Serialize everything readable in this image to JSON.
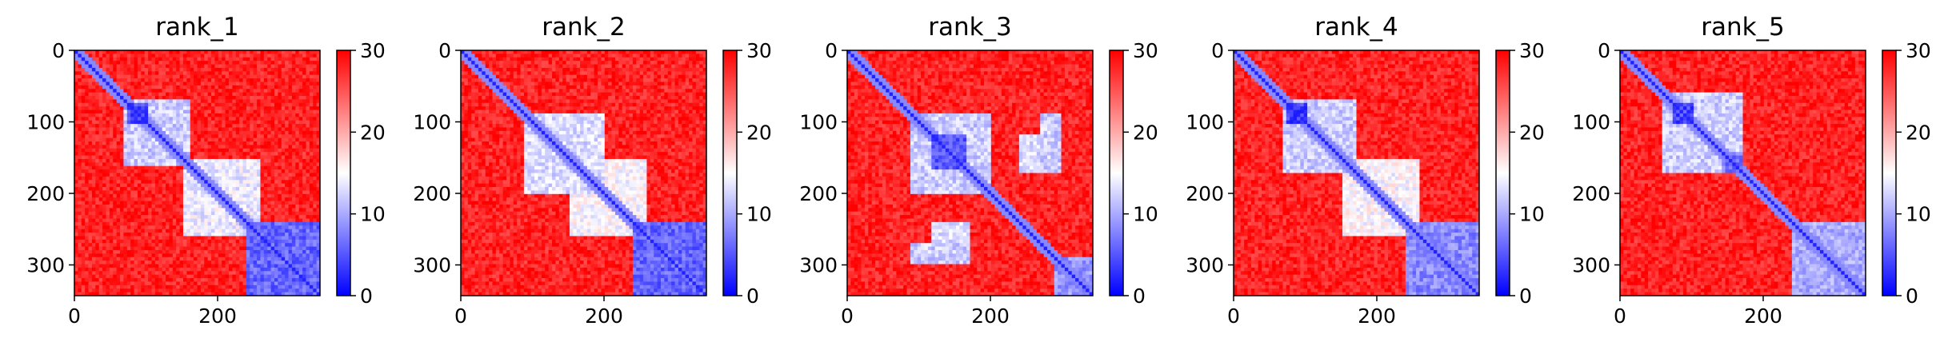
{
  "chart_data": [
    {
      "type": "heatmap",
      "title": "rank_1",
      "n": 343,
      "xticks": [
        0,
        200
      ],
      "yticks": [
        0,
        100,
        200,
        300
      ],
      "colorbar": {
        "range": [
          0,
          30
        ],
        "ticks": [
          0,
          10,
          20,
          30
        ]
      },
      "colormap": {
        "low": "#0000ff",
        "mid": "#ffffff",
        "high": "#ff0000"
      },
      "background_value": 28,
      "diagonal_value": 2,
      "blocks": [
        {
          "i": [
            70,
            160
          ],
          "j": [
            70,
            160
          ],
          "value": 12
        },
        {
          "i": [
            75,
            105
          ],
          "j": [
            75,
            105
          ],
          "value": 4
        },
        {
          "i": [
            240,
            343
          ],
          "j": [
            240,
            343
          ],
          "value": 6
        },
        {
          "i": [
            150,
            260
          ],
          "j": [
            150,
            260
          ],
          "value": 14
        }
      ]
    },
    {
      "type": "heatmap",
      "title": "rank_2",
      "n": 343,
      "xticks": [
        0,
        200
      ],
      "yticks": [
        0,
        100,
        200,
        300
      ],
      "colorbar": {
        "range": [
          0,
          30
        ],
        "ticks": [
          0,
          10,
          20,
          30
        ]
      },
      "colormap": {
        "low": "#0000ff",
        "mid": "#ffffff",
        "high": "#ff0000"
      },
      "background_value": 28,
      "diagonal_value": 2,
      "blocks": [
        {
          "i": [
            90,
            200
          ],
          "j": [
            90,
            200
          ],
          "value": 13
        },
        {
          "i": [
            240,
            343
          ],
          "j": [
            240,
            343
          ],
          "value": 6
        },
        {
          "i": [
            150,
            260
          ],
          "j": [
            150,
            260
          ],
          "value": 15
        }
      ]
    },
    {
      "type": "heatmap",
      "title": "rank_3",
      "n": 343,
      "xticks": [
        0,
        200
      ],
      "yticks": [
        0,
        100,
        200,
        300
      ],
      "colorbar": {
        "range": [
          0,
          30
        ],
        "ticks": [
          0,
          10,
          20,
          30
        ]
      },
      "colormap": {
        "low": "#0000ff",
        "mid": "#ffffff",
        "high": "#ff0000"
      },
      "background_value": 28,
      "diagonal_value": 2,
      "blocks": [
        {
          "i": [
            90,
            200
          ],
          "j": [
            90,
            200
          ],
          "value": 12
        },
        {
          "i": [
            120,
            165
          ],
          "j": [
            120,
            165
          ],
          "value": 5
        },
        {
          "i": [
            120,
            170
          ],
          "j": [
            240,
            290
          ],
          "value": 13
        },
        {
          "i": [
            270,
            300
          ],
          "j": [
            90,
            170
          ],
          "value": 12
        },
        {
          "i": [
            290,
            343
          ],
          "j": [
            290,
            343
          ],
          "value": 9
        }
      ]
    },
    {
      "type": "heatmap",
      "title": "rank_4",
      "n": 343,
      "xticks": [
        0,
        200
      ],
      "yticks": [
        0,
        100,
        200,
        300
      ],
      "colorbar": {
        "range": [
          0,
          30
        ],
        "ticks": [
          0,
          10,
          20,
          30
        ]
      },
      "colormap": {
        "low": "#0000ff",
        "mid": "#ffffff",
        "high": "#ff0000"
      },
      "background_value": 28,
      "diagonal_value": 2,
      "blocks": [
        {
          "i": [
            70,
            170
          ],
          "j": [
            70,
            170
          ],
          "value": 12
        },
        {
          "i": [
            75,
            105
          ],
          "j": [
            75,
            105
          ],
          "value": 4
        },
        {
          "i": [
            240,
            343
          ],
          "j": [
            240,
            343
          ],
          "value": 8
        },
        {
          "i": [
            150,
            260
          ],
          "j": [
            150,
            260
          ],
          "value": 15
        }
      ]
    },
    {
      "type": "heatmap",
      "title": "rank_5",
      "n": 343,
      "xticks": [
        0,
        200
      ],
      "yticks": [
        0,
        100,
        200,
        300
      ],
      "colorbar": {
        "range": [
          0,
          30
        ],
        "ticks": [
          0,
          10,
          20,
          30
        ]
      },
      "colormap": {
        "low": "#0000ff",
        "mid": "#ffffff",
        "high": "#ff0000"
      },
      "background_value": 28,
      "diagonal_value": 2,
      "blocks": [
        {
          "i": [
            60,
            170
          ],
          "j": [
            60,
            170
          ],
          "value": 12
        },
        {
          "i": [
            75,
            105
          ],
          "j": [
            75,
            105
          ],
          "value": 4
        },
        {
          "i": [
            240,
            343
          ],
          "j": [
            240,
            343
          ],
          "value": 10
        },
        {
          "i": [
            140,
            170
          ],
          "j": [
            140,
            170
          ],
          "value": 7
        }
      ]
    }
  ]
}
